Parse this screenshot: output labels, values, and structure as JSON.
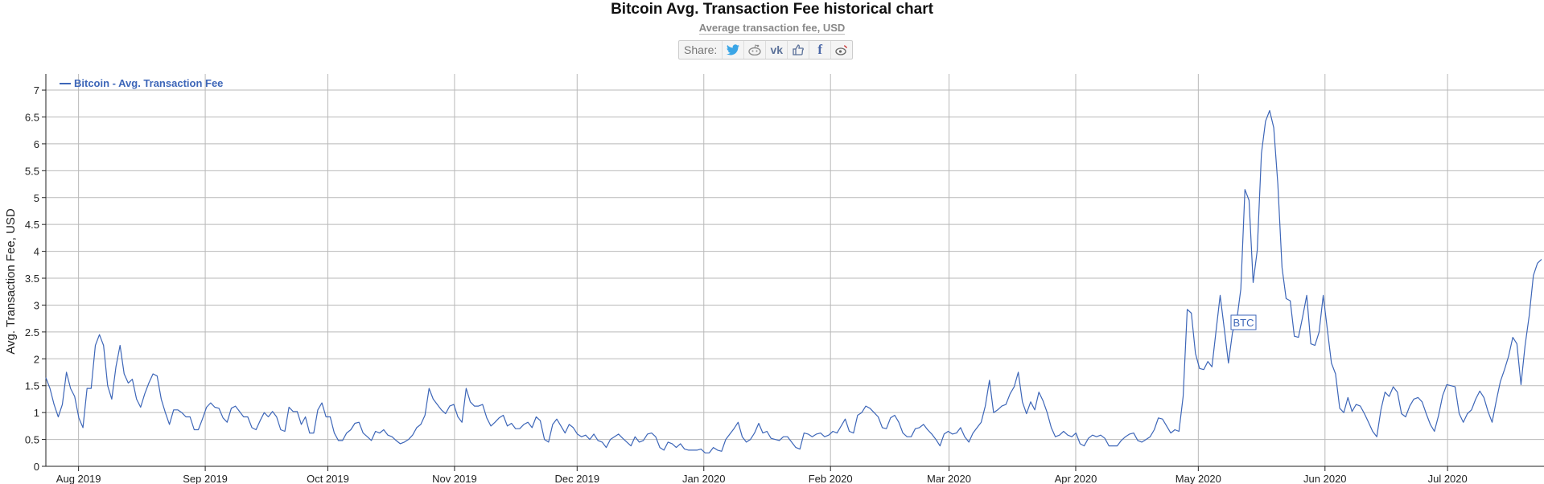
{
  "header": {
    "title": "Bitcoin Avg. Transaction Fee historical chart",
    "subtitle": "Average transaction fee, USD",
    "share_label": "Share:",
    "share_icons": [
      "twitter-icon",
      "reddit-icon",
      "vk-icon",
      "like-icon",
      "facebook-icon",
      "weibo-icon"
    ]
  },
  "colors": {
    "line": "#3d66b8",
    "grid": "#b9b9b9",
    "axis": "#222222"
  },
  "chart_data": {
    "type": "line",
    "title": "Bitcoin Avg. Transaction Fee historical chart",
    "subtitle": "Average transaction fee, USD",
    "ylabel": "Avg. Transaction Fee, USD",
    "ylim": [
      0,
      7.3
    ],
    "yticks": [
      0,
      0.5,
      1,
      1.5,
      2,
      2.5,
      3,
      3.5,
      4,
      4.5,
      5,
      5.5,
      6,
      6.5,
      7
    ],
    "x_start": "2019-07-24",
    "xlim": [
      "2019-07-24",
      "2020-07-24"
    ],
    "xticks": [
      {
        "date": "2019-08-01",
        "label": "Aug 2019"
      },
      {
        "date": "2019-09-01",
        "label": "Sep 2019"
      },
      {
        "date": "2019-10-01",
        "label": "Oct 2019"
      },
      {
        "date": "2019-11-01",
        "label": "Nov 2019"
      },
      {
        "date": "2019-12-01",
        "label": "Dec 2019"
      },
      {
        "date": "2020-01-01",
        "label": "Jan 2020"
      },
      {
        "date": "2020-02-01",
        "label": "Feb 2020"
      },
      {
        "date": "2020-03-01",
        "label": "Mar 2020"
      },
      {
        "date": "2020-04-01",
        "label": "Apr 2020"
      },
      {
        "date": "2020-05-01",
        "label": "May 2020"
      },
      {
        "date": "2020-06-01",
        "label": "Jun 2020"
      },
      {
        "date": "2020-07-01",
        "label": "Jul 2020"
      }
    ],
    "grid": true,
    "legend_position": "top-left",
    "series": [
      {
        "name": "Bitcoin - Avg. Transaction Fee",
        "values": [
          1.65,
          1.45,
          1.15,
          0.92,
          1.15,
          1.75,
          1.45,
          1.3,
          0.9,
          0.72,
          1.45,
          1.45,
          2.25,
          2.45,
          2.25,
          1.5,
          1.25,
          1.85,
          2.25,
          1.72,
          1.55,
          1.62,
          1.25,
          1.1,
          1.35,
          1.55,
          1.72,
          1.68,
          1.25,
          1.0,
          0.78,
          1.05,
          1.05,
          1.0,
          0.92,
          0.92,
          0.68,
          0.68,
          0.88,
          1.1,
          1.18,
          1.1,
          1.08,
          0.9,
          0.82,
          1.08,
          1.12,
          1.02,
          0.92,
          0.92,
          0.72,
          0.68,
          0.85,
          1.0,
          0.92,
          1.02,
          0.92,
          0.68,
          0.65,
          1.1,
          1.02,
          1.02,
          0.78,
          0.92,
          0.62,
          0.62,
          1.05,
          1.18,
          0.92,
          0.92,
          0.62,
          0.48,
          0.48,
          0.62,
          0.68,
          0.8,
          0.82,
          0.62,
          0.55,
          0.48,
          0.65,
          0.62,
          0.68,
          0.58,
          0.55,
          0.48,
          0.42,
          0.45,
          0.5,
          0.58,
          0.72,
          0.78,
          0.95,
          1.45,
          1.25,
          1.15,
          1.05,
          0.98,
          1.12,
          1.15,
          0.92,
          0.82,
          1.45,
          1.2,
          1.12,
          1.12,
          1.15,
          0.9,
          0.75,
          0.82,
          0.9,
          0.95,
          0.75,
          0.8,
          0.7,
          0.7,
          0.78,
          0.82,
          0.72,
          0.92,
          0.85,
          0.5,
          0.45,
          0.78,
          0.88,
          0.75,
          0.62,
          0.78,
          0.72,
          0.6,
          0.55,
          0.58,
          0.5,
          0.6,
          0.48,
          0.45,
          0.35,
          0.5,
          0.55,
          0.6,
          0.52,
          0.45,
          0.38,
          0.55,
          0.45,
          0.48,
          0.6,
          0.62,
          0.55,
          0.35,
          0.3,
          0.45,
          0.42,
          0.35,
          0.42,
          0.32,
          0.3,
          0.3,
          0.3,
          0.32,
          0.25,
          0.25,
          0.35,
          0.3,
          0.28,
          0.5,
          0.6,
          0.7,
          0.82,
          0.55,
          0.45,
          0.5,
          0.62,
          0.8,
          0.62,
          0.65,
          0.52,
          0.5,
          0.48,
          0.55,
          0.55,
          0.45,
          0.35,
          0.32,
          0.62,
          0.6,
          0.55,
          0.6,
          0.62,
          0.55,
          0.58,
          0.65,
          0.62,
          0.75,
          0.88,
          0.65,
          0.62,
          0.95,
          1.0,
          1.12,
          1.08,
          1.0,
          0.92,
          0.72,
          0.7,
          0.9,
          0.95,
          0.82,
          0.62,
          0.55,
          0.55,
          0.7,
          0.72,
          0.78,
          0.68,
          0.6,
          0.5,
          0.38,
          0.6,
          0.65,
          0.6,
          0.62,
          0.72,
          0.55,
          0.45,
          0.62,
          0.72,
          0.82,
          1.12,
          1.6,
          1.0,
          1.05,
          1.12,
          1.15,
          1.35,
          1.48,
          1.75,
          1.2,
          0.98,
          1.2,
          1.05,
          1.38,
          1.22,
          1.0,
          0.72,
          0.55,
          0.58,
          0.65,
          0.58,
          0.55,
          0.62,
          0.42,
          0.38,
          0.52,
          0.58,
          0.55,
          0.58,
          0.52,
          0.38,
          0.38,
          0.38,
          0.48,
          0.55,
          0.6,
          0.62,
          0.48,
          0.45,
          0.5,
          0.55,
          0.68,
          0.9,
          0.88,
          0.75,
          0.62,
          0.68,
          0.65,
          1.3,
          2.92,
          2.85,
          2.1,
          1.82,
          1.8,
          1.95,
          1.85,
          2.52,
          3.18,
          2.55,
          1.92,
          2.5,
          2.7,
          3.3,
          5.15,
          4.95,
          3.42,
          4.02,
          5.82,
          6.42,
          6.62,
          6.3,
          5.25,
          3.7,
          3.12,
          3.08,
          2.42,
          2.4,
          2.78,
          3.18,
          2.28,
          2.25,
          2.5,
          3.18,
          2.55,
          1.92,
          1.72,
          1.08,
          1.0,
          1.28,
          1.02,
          1.15,
          1.12,
          0.98,
          0.82,
          0.65,
          0.55,
          1.05,
          1.38,
          1.3,
          1.48,
          1.38,
          0.98,
          0.92,
          1.12,
          1.25,
          1.28,
          1.2,
          0.98,
          0.78,
          0.65,
          0.95,
          1.32,
          1.52,
          1.5,
          1.48,
          0.98,
          0.82,
          0.98,
          1.05,
          1.25,
          1.4,
          1.28,
          1.02,
          0.82,
          1.22,
          1.58,
          1.8,
          2.05,
          2.4,
          2.28,
          1.52,
          2.25,
          2.8,
          3.55,
          3.78,
          3.85
        ]
      }
    ],
    "annotations": [
      "BTC"
    ]
  }
}
